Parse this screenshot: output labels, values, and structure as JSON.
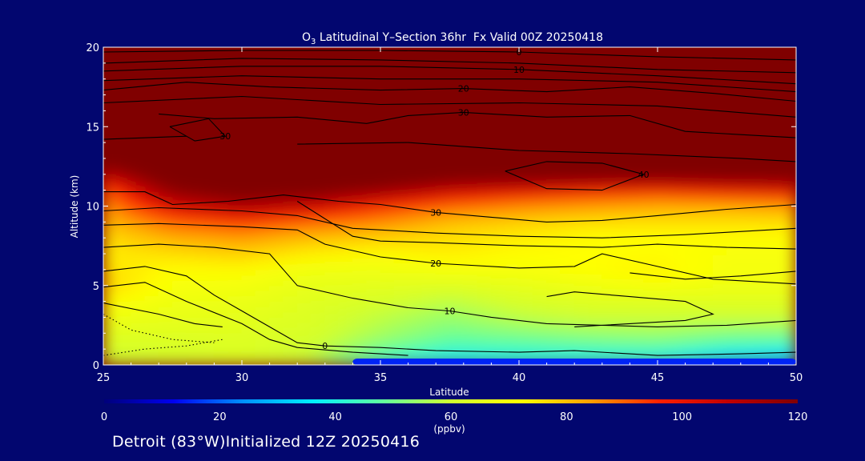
{
  "chart_data": {
    "type": "heatmap",
    "title": {
      "main": "O",
      "sub": "3",
      "rest": " Latitudinal Y–Section 36hr  Fx Valid 00Z 20250418"
    },
    "xlabel": "Latitude",
    "ylabel": "Altitude (km)",
    "xlim": [
      25,
      50
    ],
    "ylim": [
      0,
      20
    ],
    "x_ticks": [
      25,
      30,
      35,
      40,
      45,
      50
    ],
    "y_ticks": [
      0,
      5,
      10,
      15,
      20
    ],
    "colorbar": {
      "min": 0,
      "max": 120,
      "ticks": [
        0,
        20,
        40,
        60,
        80,
        100,
        120
      ],
      "unit": "(ppbv)",
      "colors": [
        "#00007a",
        "#0000f0",
        "#0090ff",
        "#00f0ff",
        "#60ffa0",
        "#d0ff30",
        "#ffff00",
        "#ffa000",
        "#ff2000",
        "#c00000",
        "#800000"
      ]
    },
    "rows_km": [
      0,
      1,
      2,
      3,
      4,
      5,
      6,
      7,
      8,
      9,
      10,
      11,
      12,
      13,
      14,
      15,
      16,
      17,
      18,
      19,
      20
    ],
    "cols_lat": [
      25,
      27.5,
      30,
      32.5,
      35,
      37.5,
      40,
      42.5,
      45,
      47.5,
      50
    ],
    "values": [
      [
        58,
        60,
        62,
        58,
        38,
        30,
        34,
        33,
        32,
        24,
        22
      ],
      [
        62,
        62,
        63,
        60,
        50,
        44,
        44,
        45,
        46,
        42,
        40
      ],
      [
        64,
        64,
        64,
        62,
        56,
        50,
        52,
        54,
        55,
        52,
        52
      ],
      [
        68,
        66,
        65,
        63,
        58,
        54,
        58,
        60,
        60,
        60,
        60
      ],
      [
        72,
        68,
        67,
        64,
        62,
        58,
        62,
        64,
        64,
        64,
        64
      ],
      [
        78,
        70,
        69,
        66,
        65,
        64,
        66,
        68,
        70,
        68,
        68
      ],
      [
        76,
        72,
        72,
        68,
        68,
        70,
        70,
        72,
        74,
        70,
        70
      ],
      [
        74,
        76,
        78,
        74,
        72,
        74,
        72,
        72,
        72,
        70,
        70
      ],
      [
        76,
        82,
        84,
        80,
        78,
        76,
        74,
        72,
        72,
        72,
        72
      ],
      [
        80,
        90,
        94,
        90,
        86,
        80,
        78,
        76,
        76,
        76,
        76
      ],
      [
        84,
        104,
        112,
        106,
        96,
        90,
        86,
        84,
        82,
        82,
        84
      ],
      [
        90,
        118,
        126,
        124,
        116,
        106,
        102,
        98,
        96,
        100,
        102
      ],
      [
        108,
        130,
        140,
        140,
        135,
        130,
        130,
        130,
        128,
        128,
        128
      ],
      [
        130,
        150,
        160,
        160,
        155,
        150,
        150,
        150,
        150,
        150,
        150
      ],
      [
        150,
        170,
        180,
        180,
        175,
        170,
        170,
        170,
        170,
        170,
        170
      ],
      [
        170,
        180,
        190,
        190,
        190,
        190,
        190,
        190,
        190,
        190,
        190
      ],
      [
        190,
        200,
        200,
        200,
        200,
        200,
        200,
        200,
        200,
        200,
        200
      ],
      [
        200,
        200,
        200,
        200,
        200,
        200,
        200,
        200,
        200,
        200,
        200
      ],
      [
        200,
        200,
        200,
        200,
        200,
        200,
        200,
        200,
        200,
        200,
        200
      ],
      [
        200,
        200,
        200,
        200,
        200,
        200,
        200,
        200,
        200,
        200,
        200
      ],
      [
        200,
        200,
        200,
        200,
        200,
        200,
        200,
        200,
        200,
        200,
        200
      ]
    ],
    "low_band": {
      "lat": [
        34,
        50
      ],
      "km": [
        0,
        0.4
      ],
      "value": 15
    },
    "contours": [
      {
        "label": "0",
        "dashed": false,
        "points": [
          [
            25,
            5.9
          ],
          [
            26.5,
            6.2
          ],
          [
            28,
            5.6
          ],
          [
            29,
            4.4
          ],
          [
            30,
            3.4
          ],
          [
            31,
            2.4
          ],
          [
            32,
            1.4
          ],
          [
            33,
            1.2
          ],
          [
            35,
            1.1
          ],
          [
            37,
            0.9
          ],
          [
            40,
            0.8
          ],
          [
            42,
            0.9
          ],
          [
            45,
            0.6
          ],
          [
            48,
            0.7
          ],
          [
            50,
            0.8
          ]
        ]
      },
      {
        "label": "10",
        "dashed": false,
        "points": [
          [
            25,
            7.4
          ],
          [
            27,
            7.6
          ],
          [
            29,
            7.4
          ],
          [
            31,
            7.0
          ],
          [
            32,
            5.0
          ],
          [
            34,
            4.2
          ],
          [
            36,
            3.6
          ],
          [
            37.5,
            3.4
          ],
          [
            39,
            3.0
          ],
          [
            41,
            2.6
          ],
          [
            43,
            2.5
          ],
          [
            45,
            2.4
          ],
          [
            47.5,
            2.5
          ],
          [
            50,
            2.8
          ]
        ]
      },
      {
        "label": "20",
        "dashed": false,
        "points": [
          [
            25,
            8.8
          ],
          [
            27,
            8.9
          ],
          [
            30,
            8.7
          ],
          [
            32,
            8.5
          ],
          [
            33,
            7.6
          ],
          [
            35,
            6.8
          ],
          [
            37,
            6.4
          ],
          [
            40,
            6.1
          ],
          [
            42,
            6.2
          ],
          [
            43,
            7.0
          ],
          [
            45,
            6.2
          ],
          [
            47,
            5.4
          ],
          [
            50,
            5.1
          ]
        ]
      },
      {
        "label": "30",
        "dashed": false,
        "points": [
          [
            25,
            10.9
          ],
          [
            26.5,
            10.9
          ],
          [
            27.5,
            10.1
          ],
          [
            29.5,
            10.3
          ],
          [
            31.5,
            10.7
          ],
          [
            33.5,
            10.3
          ],
          [
            35,
            10.1
          ],
          [
            37,
            9.6
          ],
          [
            39,
            9.3
          ],
          [
            41,
            9.0
          ],
          [
            43,
            9.1
          ],
          [
            45,
            9.4
          ],
          [
            47.5,
            9.8
          ],
          [
            50,
            10.1
          ]
        ]
      },
      {
        "label": "40",
        "dashed": false,
        "points": [
          [
            39.5,
            12.2
          ],
          [
            41,
            12.8
          ],
          [
            43,
            12.7
          ],
          [
            44.5,
            12.0
          ],
          [
            43,
            11.0
          ],
          [
            41,
            11.1
          ],
          [
            39.5,
            12.2
          ]
        ]
      },
      {
        "label": "30",
        "dashed": false,
        "points": [
          [
            27,
            15.8
          ],
          [
            29,
            15.5
          ],
          [
            32,
            15.6
          ],
          [
            34.5,
            15.2
          ],
          [
            36,
            15.7
          ],
          [
            38,
            15.9
          ],
          [
            41,
            15.6
          ],
          [
            44,
            15.7
          ],
          [
            46,
            14.7
          ],
          [
            48,
            14.5
          ],
          [
            50,
            14.3
          ]
        ]
      },
      {
        "label": "30",
        "dashed": false,
        "points": [
          [
            27.4,
            15.0
          ],
          [
            28.3,
            14.1
          ],
          [
            29.4,
            14.4
          ],
          [
            28.8,
            15.5
          ],
          [
            27.4,
            15.0
          ]
        ]
      },
      {
        "label": "",
        "dashed": false,
        "points": [
          [
            32,
            13.9
          ],
          [
            36,
            14.0
          ],
          [
            40,
            13.5
          ],
          [
            44,
            13.3
          ],
          [
            48,
            13.0
          ],
          [
            50,
            12.8
          ]
        ]
      },
      {
        "label": "",
        "dashed": false,
        "points": [
          [
            25,
            14.2
          ],
          [
            28,
            14.4
          ]
        ]
      },
      {
        "label": "20",
        "dashed": false,
        "points": [
          [
            25,
            17.3
          ],
          [
            28,
            17.8
          ],
          [
            31,
            17.5
          ],
          [
            35,
            17.3
          ],
          [
            38,
            17.4
          ],
          [
            41,
            17.2
          ],
          [
            44,
            17.5
          ],
          [
            47,
            17.1
          ],
          [
            50,
            16.6
          ]
        ]
      },
      {
        "label": "10",
        "dashed": false,
        "points": [
          [
            25,
            18.5
          ],
          [
            30,
            18.8
          ],
          [
            35,
            18.8
          ],
          [
            40,
            18.6
          ],
          [
            45,
            18.2
          ],
          [
            48,
            17.9
          ],
          [
            50,
            17.7
          ]
        ]
      },
      {
        "label": "",
        "dashed": false,
        "points": [
          [
            25,
            16.5
          ],
          [
            30,
            16.9
          ],
          [
            35,
            16.4
          ],
          [
            40,
            16.5
          ],
          [
            45,
            16.3
          ],
          [
            50,
            15.6
          ]
        ]
      },
      {
        "label": "",
        "dashed": false,
        "points": [
          [
            25,
            17.9
          ],
          [
            30,
            18.2
          ],
          [
            35,
            18.0
          ],
          [
            40,
            18.0
          ],
          [
            45,
            17.8
          ],
          [
            50,
            17.2
          ]
        ]
      },
      {
        "label": "",
        "dashed": false,
        "points": [
          [
            25,
            19.0
          ],
          [
            30,
            19.3
          ],
          [
            35,
            19.2
          ],
          [
            40,
            19.0
          ],
          [
            45,
            18.6
          ],
          [
            50,
            18.4
          ]
        ]
      },
      {
        "label": "0",
        "dashed": false,
        "points": [
          [
            25,
            19.7
          ],
          [
            30,
            19.8
          ],
          [
            35,
            19.8
          ],
          [
            40,
            19.7
          ],
          [
            45,
            19.4
          ],
          [
            50,
            19.2
          ]
        ]
      },
      {
        "label": "",
        "dashed": false,
        "points": [
          [
            25,
            4.9
          ],
          [
            26.5,
            5.2
          ],
          [
            28,
            4.0
          ],
          [
            30,
            2.6
          ],
          [
            31,
            1.6
          ],
          [
            32,
            1.1
          ],
          [
            34,
            0.8
          ],
          [
            36,
            0.6
          ]
        ]
      },
      {
        "label": "",
        "dashed": false,
        "points": [
          [
            32,
            10.3
          ],
          [
            34,
            8.1
          ],
          [
            35,
            7.8
          ],
          [
            37,
            7.7
          ],
          [
            40,
            7.5
          ],
          [
            43,
            7.4
          ],
          [
            45,
            7.6
          ],
          [
            47.5,
            7.4
          ],
          [
            50,
            7.3
          ]
        ]
      },
      {
        "label": "",
        "dashed": false,
        "points": [
          [
            25,
            9.7
          ],
          [
            27,
            9.9
          ],
          [
            30,
            9.7
          ],
          [
            32,
            9.4
          ],
          [
            34,
            8.6
          ],
          [
            37,
            8.3
          ],
          [
            40,
            8.1
          ],
          [
            43,
            8.0
          ],
          [
            46,
            8.2
          ],
          [
            50,
            8.6
          ]
        ]
      },
      {
        "label": "",
        "dashed": false,
        "points": [
          [
            25,
            3.9
          ],
          [
            27,
            3.2
          ],
          [
            28.3,
            2.6
          ],
          [
            29.3,
            2.4
          ]
        ]
      },
      {
        "label": "",
        "dashed": true,
        "points": [
          [
            25,
            3.2
          ],
          [
            26,
            2.2
          ],
          [
            27.5,
            1.6
          ],
          [
            29,
            1.4
          ]
        ]
      },
      {
        "label": "",
        "dashed": true,
        "points": [
          [
            25,
            0.6
          ],
          [
            26.5,
            1.0
          ],
          [
            28,
            1.2
          ],
          [
            29.3,
            1.6
          ]
        ]
      },
      {
        "label": "",
        "dashed": false,
        "points": [
          [
            41,
            4.3
          ],
          [
            42,
            4.6
          ],
          [
            44,
            4.3
          ],
          [
            46,
            4.0
          ],
          [
            47,
            3.2
          ],
          [
            46,
            2.8
          ],
          [
            44,
            2.6
          ],
          [
            42,
            2.4
          ]
        ]
      },
      {
        "label": "",
        "dashed": false,
        "points": [
          [
            44,
            5.8
          ],
          [
            46,
            5.4
          ],
          [
            48,
            5.6
          ],
          [
            50,
            5.9
          ]
        ]
      }
    ]
  },
  "footer": {
    "text": "Detroit (83°W)Initialized 12Z 20250416"
  }
}
